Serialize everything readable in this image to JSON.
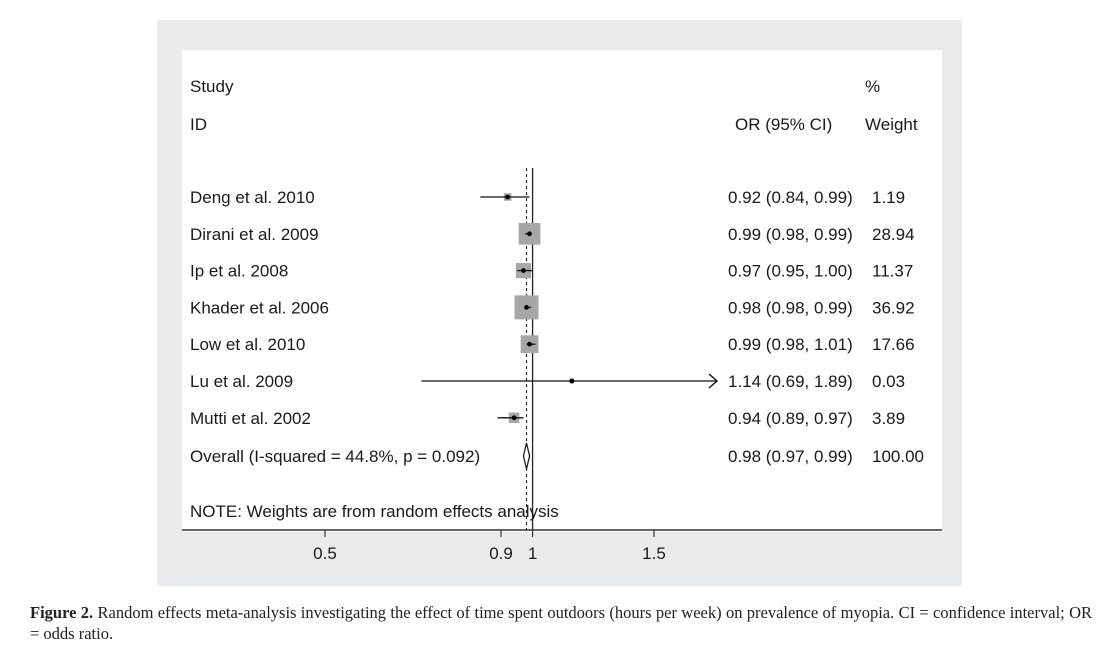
{
  "chart_data": {
    "type": "forest",
    "headers": {
      "study_line1": "Study",
      "study_line2": "ID",
      "or": "OR (95% CI)",
      "weight_line1": "%",
      "weight_line2": "Weight"
    },
    "studies": [
      {
        "id": "Deng et al. 2010",
        "or": 0.92,
        "lo": 0.84,
        "hi": 0.99,
        "or_text": "0.92 (0.84, 0.99)",
        "weight": 1.19,
        "weight_text": "1.19"
      },
      {
        "id": "Dirani et al. 2009",
        "or": 0.99,
        "lo": 0.98,
        "hi": 0.99,
        "or_text": "0.99 (0.98, 0.99)",
        "weight": 28.94,
        "weight_text": "28.94"
      },
      {
        "id": "Ip et al. 2008",
        "or": 0.97,
        "lo": 0.95,
        "hi": 1.0,
        "or_text": "0.97 (0.95, 1.00)",
        "weight": 11.37,
        "weight_text": "11.37"
      },
      {
        "id": "Khader et al. 2006",
        "or": 0.98,
        "lo": 0.98,
        "hi": 0.99,
        "or_text": "0.98 (0.98, 0.99)",
        "weight": 36.92,
        "weight_text": "36.92"
      },
      {
        "id": "Low et al. 2010",
        "or": 0.99,
        "lo": 0.98,
        "hi": 1.01,
        "or_text": "0.99 (0.98, 1.01)",
        "weight": 17.66,
        "weight_text": "17.66"
      },
      {
        "id": "Lu et al. 2009",
        "or": 1.14,
        "lo": 0.69,
        "hi": 1.89,
        "or_text": "1.14 (0.69, 1.89)",
        "weight": 0.03,
        "weight_text": "0.03",
        "truncated_high": true
      },
      {
        "id": "Mutti et al. 2002",
        "or": 0.94,
        "lo": 0.89,
        "hi": 0.97,
        "or_text": "0.94 (0.89, 0.97)",
        "weight": 3.89,
        "weight_text": "3.89"
      }
    ],
    "overall": {
      "label": "Overall  (I-squared = 44.8%, p = 0.092)",
      "or": 0.98,
      "lo": 0.97,
      "hi": 0.99,
      "or_text": "0.98 (0.97, 0.99)",
      "weight_text": "100.00"
    },
    "note": "NOTE: Weights are from random effects analysis",
    "x_axis": {
      "ticks": [
        0.5,
        0.9,
        1,
        1.5
      ],
      "tick_labels": [
        "0.5",
        "0.9",
        "1",
        "1.5"
      ],
      "scale": "log",
      "range": [
        0.4,
        1.7
      ]
    },
    "null_line": 1
  },
  "caption": {
    "label": "Figure 2.",
    "text": " Random effects meta-analysis investigating the effect of time spent outdoors (hours per week) on prevalence of myopia. CI = confidence interval; OR = odds ratio."
  }
}
